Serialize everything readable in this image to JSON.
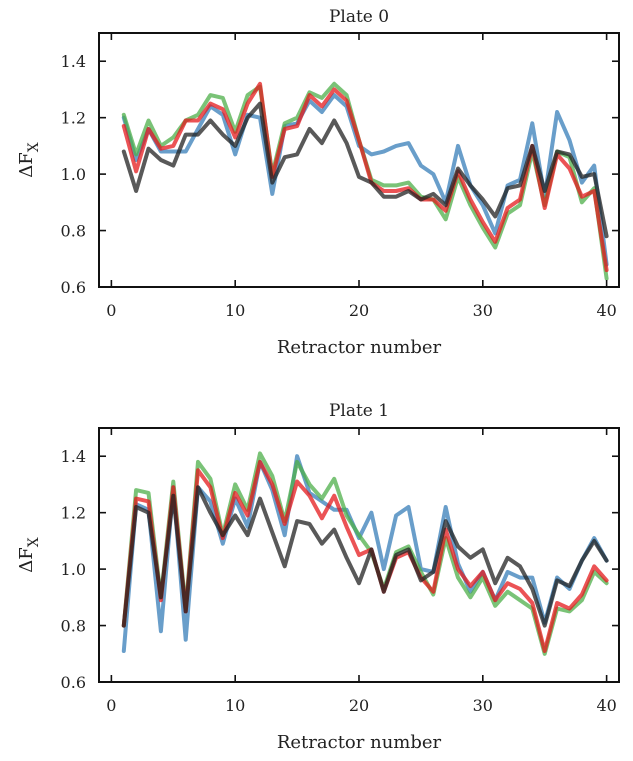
{
  "chart_data": [
    {
      "type": "line",
      "title": "Plate 0",
      "xlabel": "Retractor number",
      "ylabel": "ΔF",
      "ylabel_sub": "X",
      "xlim": [
        -1,
        41
      ],
      "ylim": [
        0.6,
        1.5
      ],
      "xticks": [
        "0",
        "10",
        "20",
        "30",
        "40"
      ],
      "yticks": [
        "0.6",
        "0.8",
        "1.0",
        "1.2",
        "1.4"
      ],
      "grid": false,
      "x": [
        1,
        2,
        3,
        4,
        5,
        6,
        7,
        8,
        9,
        10,
        11,
        12,
        13,
        14,
        15,
        16,
        17,
        18,
        19,
        20,
        21,
        22,
        23,
        24,
        25,
        26,
        27,
        28,
        29,
        30,
        31,
        32,
        33,
        34,
        35,
        36,
        37,
        38,
        39,
        40
      ],
      "series": [
        {
          "color": "#377eb8",
          "values": [
            1.2,
            1.05,
            1.16,
            1.08,
            1.08,
            1.08,
            1.16,
            1.24,
            1.21,
            1.07,
            1.21,
            1.2,
            0.93,
            1.17,
            1.18,
            1.26,
            1.22,
            1.28,
            1.24,
            1.1,
            1.07,
            1.08,
            1.1,
            1.11,
            1.03,
            1.0,
            0.9,
            1.1,
            0.96,
            0.89,
            0.79,
            0.96,
            0.98,
            1.18,
            0.92,
            1.22,
            1.12,
            0.97,
            1.03,
            0.68
          ]
        },
        {
          "color": "#4daf4a",
          "values": [
            1.21,
            1.07,
            1.19,
            1.1,
            1.13,
            1.19,
            1.21,
            1.28,
            1.27,
            1.15,
            1.28,
            1.31,
            1.0,
            1.18,
            1.2,
            1.29,
            1.27,
            1.32,
            1.28,
            1.12,
            0.98,
            0.96,
            0.96,
            0.97,
            0.92,
            0.91,
            0.84,
            0.99,
            0.89,
            0.81,
            0.74,
            0.86,
            0.89,
            1.08,
            0.89,
            1.08,
            1.06,
            0.9,
            0.95,
            0.63
          ]
        },
        {
          "color": "#e41a1c",
          "values": [
            1.17,
            1.01,
            1.16,
            1.09,
            1.1,
            1.19,
            1.19,
            1.25,
            1.23,
            1.13,
            1.25,
            1.32,
            0.99,
            1.16,
            1.17,
            1.28,
            1.24,
            1.3,
            1.26,
            1.12,
            0.97,
            0.94,
            0.94,
            0.95,
            0.91,
            0.91,
            0.87,
            1.01,
            0.91,
            0.83,
            0.76,
            0.88,
            0.91,
            1.1,
            0.88,
            1.07,
            1.02,
            0.92,
            0.94,
            0.66
          ]
        },
        {
          "color": "#222222",
          "values": [
            1.08,
            0.94,
            1.09,
            1.05,
            1.03,
            1.14,
            1.14,
            1.19,
            1.14,
            1.1,
            1.2,
            1.25,
            0.97,
            1.06,
            1.07,
            1.16,
            1.11,
            1.19,
            1.11,
            0.99,
            0.97,
            0.92,
            0.92,
            0.94,
            0.91,
            0.93,
            0.89,
            1.02,
            0.96,
            0.91,
            0.85,
            0.95,
            0.96,
            1.1,
            0.94,
            1.08,
            1.07,
            0.99,
            1.0,
            0.78
          ]
        }
      ]
    },
    {
      "type": "line",
      "title": "Plate 1",
      "xlabel": "Retractor number",
      "ylabel": "ΔF",
      "ylabel_sub": "X",
      "xlim": [
        -1,
        41
      ],
      "ylim": [
        0.6,
        1.5
      ],
      "xticks": [
        "0",
        "10",
        "20",
        "30",
        "40"
      ],
      "yticks": [
        "0.6",
        "0.8",
        "1.0",
        "1.2",
        "1.4"
      ],
      "grid": false,
      "x": [
        1,
        2,
        3,
        4,
        5,
        6,
        7,
        8,
        9,
        10,
        11,
        12,
        13,
        14,
        15,
        16,
        17,
        18,
        19,
        20,
        21,
        22,
        23,
        24,
        25,
        26,
        27,
        28,
        29,
        30,
        31,
        32,
        33,
        34,
        35,
        36,
        37,
        38,
        39,
        40
      ],
      "series": [
        {
          "color": "#377eb8",
          "values": [
            0.71,
            1.23,
            1.21,
            0.78,
            1.29,
            0.75,
            1.29,
            1.24,
            1.09,
            1.25,
            1.15,
            1.38,
            1.28,
            1.12,
            1.4,
            1.27,
            1.24,
            1.21,
            1.21,
            1.11,
            1.2,
            1.0,
            1.19,
            1.22,
            1.0,
            0.99,
            1.22,
            1.02,
            0.92,
            0.99,
            0.89,
            0.99,
            0.97,
            0.97,
            0.81,
            0.97,
            0.93,
            1.03,
            1.11,
            1.03
          ]
        },
        {
          "color": "#4daf4a",
          "values": [
            0.8,
            1.28,
            1.27,
            0.9,
            1.31,
            0.86,
            1.38,
            1.32,
            1.12,
            1.3,
            1.21,
            1.41,
            1.33,
            1.17,
            1.38,
            1.3,
            1.25,
            1.32,
            1.19,
            1.12,
            1.06,
            0.93,
            1.06,
            1.08,
            0.99,
            0.91,
            1.11,
            0.97,
            0.9,
            0.97,
            0.87,
            0.92,
            0.89,
            0.86,
            0.7,
            0.86,
            0.85,
            0.89,
            0.99,
            0.95
          ]
        },
        {
          "color": "#e41a1c",
          "values": [
            0.8,
            1.25,
            1.24,
            0.89,
            1.29,
            0.85,
            1.35,
            1.29,
            1.11,
            1.27,
            1.19,
            1.38,
            1.3,
            1.16,
            1.31,
            1.26,
            1.18,
            1.26,
            1.15,
            1.05,
            1.07,
            0.92,
            1.04,
            1.06,
            0.97,
            0.92,
            1.14,
            1.0,
            0.94,
            0.99,
            0.89,
            0.95,
            0.93,
            0.88,
            0.71,
            0.88,
            0.86,
            0.91,
            1.01,
            0.96
          ]
        },
        {
          "color": "#222222",
          "values": [
            0.8,
            1.22,
            1.2,
            0.9,
            1.26,
            0.85,
            1.29,
            1.2,
            1.12,
            1.19,
            1.12,
            1.25,
            1.13,
            1.01,
            1.17,
            1.16,
            1.09,
            1.14,
            1.04,
            0.95,
            1.07,
            0.92,
            1.05,
            1.07,
            0.96,
            0.99,
            1.17,
            1.08,
            1.04,
            1.07,
            0.95,
            1.04,
            1.01,
            0.93,
            0.8,
            0.96,
            0.94,
            1.03,
            1.1,
            1.03
          ]
        }
      ]
    }
  ]
}
